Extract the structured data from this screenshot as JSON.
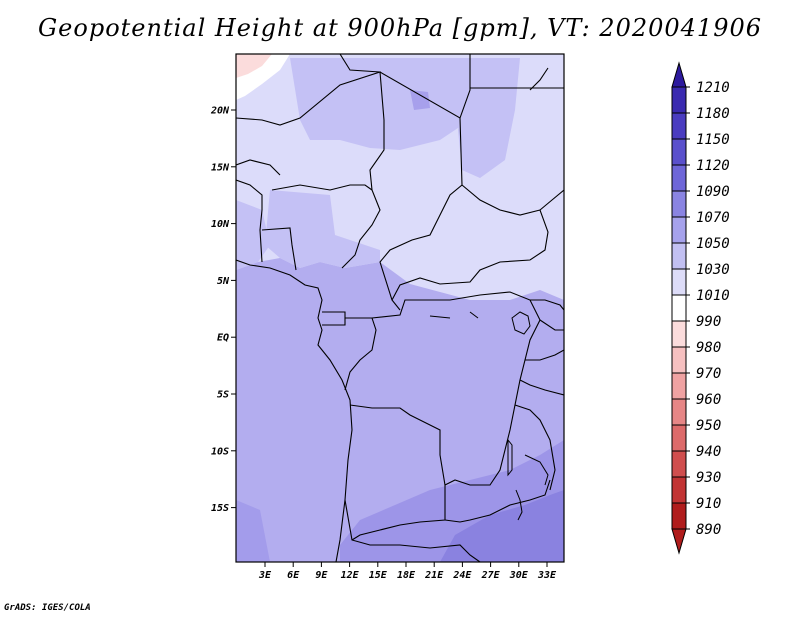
{
  "title": "Geopotential Height at 900hPa [gpm], VT: 2020041906",
  "credit": "GrADS: IGES/COLA",
  "map": {
    "lat_labels": [
      "20N",
      "15N",
      "10N",
      "5N",
      "EQ",
      "5S",
      "10S",
      "15S"
    ],
    "lon_labels": [
      "3E",
      "6E",
      "9E",
      "12E",
      "15E",
      "18E",
      "21E",
      "24E",
      "27E",
      "30E",
      "33E"
    ]
  },
  "colorbar": {
    "levels": [
      "1210",
      "1180",
      "1150",
      "1120",
      "1090",
      "1070",
      "1050",
      "1030",
      "1010",
      "990",
      "980",
      "970",
      "960",
      "950",
      "940",
      "930",
      "910",
      "890"
    ],
    "colors": {
      "top_arrow": "#2d1a9e",
      "bins": [
        "#2d1a9e",
        "#3a2ab0",
        "#4a3cc0",
        "#5a50cc",
        "#6e66d8",
        "#8a84e2",
        "#a6a2ec",
        "#c2c0f2",
        "#dddcf8",
        "#ffffff",
        "#fbdcdc",
        "#f6c0c0",
        "#efa2a2",
        "#e68686",
        "#dc6a6a",
        "#d04e4e",
        "#c23434",
        "#b01c1c"
      ],
      "bottom_arrow": "#b01c1c"
    }
  }
}
